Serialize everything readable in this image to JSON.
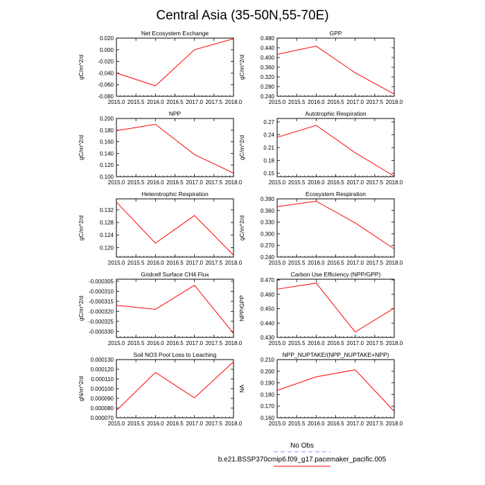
{
  "page_title": "Central Asia (35-50N,55-70E)",
  "legend": {
    "obs_label": "No Obs",
    "obs_color": "#8a8aff",
    "model_label": "b.e21.BSSP370cmip6.f09_g17.pacemaker_pacific.005",
    "model_color": "#ff0000"
  },
  "series_color": "#ff0000",
  "chart_data": [
    {
      "type": "line",
      "title": "Net Ecosystem Exchange",
      "ylabel": "gC/m^2/d",
      "x": [
        2015,
        2016,
        2017,
        2018
      ],
      "values": [
        -0.04,
        -0.062,
        0.0,
        0.019
      ],
      "xlim": [
        2015,
        2018
      ],
      "ylim": [
        -0.08,
        0.02
      ],
      "xticks": [
        "2015.0",
        "2015.5",
        "2016.0",
        "2016.5",
        "2017.0",
        "2017.5",
        "2018.0"
      ],
      "yticks": [
        "-0.080",
        "-0.060",
        "-0.040",
        "-0.020",
        "0.000",
        "0.020"
      ]
    },
    {
      "type": "line",
      "title": "GPP",
      "ylabel": "gC/m^2/d",
      "x": [
        2015,
        2016,
        2017,
        2018
      ],
      "values": [
        0.413,
        0.447,
        0.337,
        0.249
      ],
      "xlim": [
        2015,
        2018
      ],
      "ylim": [
        0.24,
        0.48
      ],
      "xticks": [
        "2015.0",
        "2015.5",
        "2016.0",
        "2016.5",
        "2017.0",
        "2017.5",
        "2018.0"
      ],
      "yticks": [
        "0.240",
        "0.280",
        "0.320",
        "0.360",
        "0.400",
        "0.440",
        "0.480"
      ]
    },
    {
      "type": "line",
      "title": "NPP",
      "ylabel": "gC/m^2/d",
      "x": [
        2015,
        2016,
        2017,
        2018
      ],
      "values": [
        0.179,
        0.19,
        0.138,
        0.106
      ],
      "xlim": [
        2015,
        2018
      ],
      "ylim": [
        0.1,
        0.2
      ],
      "xticks": [
        "2015.0",
        "2015.5",
        "2016.0",
        "2016.5",
        "2017.0",
        "2017.5",
        "2018.0"
      ],
      "yticks": [
        "0.100",
        "0.120",
        "0.140",
        "0.160",
        "0.180",
        "0.200"
      ]
    },
    {
      "type": "line",
      "title": "Autotrophic Respiration",
      "ylabel": "gC/m^2/d",
      "x": [
        2015,
        2016,
        2017,
        2018
      ],
      "values": [
        0.234,
        0.262,
        0.198,
        0.143
      ],
      "xlim": [
        2015,
        2018
      ],
      "ylim": [
        0.142,
        0.278
      ],
      "xticks": [
        "2015.0",
        "2015.5",
        "2016.0",
        "2016.5",
        "2017.0",
        "2017.5",
        "2018.0"
      ],
      "yticks": [
        "0.15",
        "0.18",
        "0.21",
        "0.24",
        "0.27"
      ],
      "ytick_values": [
        0.15,
        0.18,
        0.21,
        0.24,
        0.27
      ]
    },
    {
      "type": "line",
      "title": "Heterotrophic Respiration",
      "ylabel": "gC/m^2/d",
      "x": [
        2015,
        2016,
        2017,
        2018
      ],
      "values": [
        0.1345,
        0.1214,
        0.1302,
        0.1176
      ],
      "xlim": [
        2015,
        2018
      ],
      "ylim": [
        0.117,
        0.1355
      ],
      "xticks": [
        "2015.0",
        "2015.5",
        "2016.0",
        "2016.5",
        "2017.0",
        "2017.5",
        "2018.0"
      ],
      "yticks": [
        "0.120",
        "0.124",
        "0.128",
        "0.132"
      ],
      "ytick_values": [
        0.12,
        0.124,
        0.128,
        0.132
      ]
    },
    {
      "type": "line",
      "title": "Ecosystem Respiration",
      "ylabel": "gC/m^2/d",
      "x": [
        2015,
        2016,
        2017,
        2018
      ],
      "values": [
        0.37,
        0.384,
        0.328,
        0.261
      ],
      "xlim": [
        2015,
        2018
      ],
      "ylim": [
        0.24,
        0.39
      ],
      "xticks": [
        "2015.0",
        "2015.5",
        "2016.0",
        "2016.5",
        "2017.0",
        "2017.5",
        "2018.0"
      ],
      "yticks": [
        "0.240",
        "0.270",
        "0.300",
        "0.330",
        "0.360",
        "0.390"
      ]
    },
    {
      "type": "line",
      "title": "Gridcell Surface CH4 Flux",
      "ylabel": "gC/m^2/d",
      "x": [
        2015,
        2016,
        2017,
        2018
      ],
      "values": [
        -0.000317,
        -0.000319,
        -0.000307,
        -0.000331
      ],
      "xlim": [
        2015,
        2018
      ],
      "ylim": [
        -0.000333,
        -0.000304
      ],
      "xticks": [
        "2015.0",
        "2015.5",
        "2016.0",
        "2016.5",
        "2017.0",
        "2017.5",
        "2018.0"
      ],
      "yticks": [
        "-0.000330",
        "-0.000325",
        "-0.000320",
        "-0.000315",
        "-0.000310",
        "-0.000305"
      ],
      "ytick_values": [
        -0.00033,
        -0.000325,
        -0.00032,
        -0.000315,
        -0.00031,
        -0.000305
      ]
    },
    {
      "type": "line",
      "title": "Carbon Use Efficiency (NPP/GPP)",
      "ylabel": "NPP/GPP",
      "x": [
        2015,
        2016,
        2017,
        2018
      ],
      "values": [
        0.4636,
        0.4678,
        0.4338,
        0.4504
      ],
      "xlim": [
        2015,
        2018
      ],
      "ylim": [
        0.43,
        0.4705
      ],
      "xticks": [
        "2015.0",
        "2015.5",
        "2016.0",
        "2016.5",
        "2017.0",
        "2017.5",
        "2018.0"
      ],
      "yticks": [
        "0.430",
        "0.440",
        "0.450",
        "0.460",
        "0.470"
      ],
      "ytick_values": [
        0.43,
        0.44,
        0.45,
        0.46,
        0.47
      ]
    },
    {
      "type": "line",
      "title": "Soil NO3 Pool Loss to Leaching",
      "ylabel": "gN/m^2/d",
      "x": [
        2015,
        2016,
        2017,
        2018
      ],
      "values": [
        7.75e-05,
        0.0001168,
        9.05e-05,
        0.0001278
      ],
      "xlim": [
        2015,
        2018
      ],
      "ylim": [
        7e-05,
        0.00013
      ],
      "xticks": [
        "2015.0",
        "2015.5",
        "2016.0",
        "2016.5",
        "2017.0",
        "2017.5",
        "2018.0"
      ],
      "yticks": [
        "0.000070",
        "0.000080",
        "0.000090",
        "0.000100",
        "0.000110",
        "0.000120",
        "0.000130"
      ]
    },
    {
      "type": "line",
      "title": "NPP_NUPTAKE/(NPP_NUPTAKE+NPP)",
      "ylabel": "NA",
      "x": [
        2015,
        2016,
        2017,
        2018
      ],
      "values": [
        0.1835,
        0.1952,
        0.2012,
        0.1655
      ],
      "xlim": [
        2015,
        2018
      ],
      "ylim": [
        0.16,
        0.21
      ],
      "xticks": [
        "2015.0",
        "2015.5",
        "2016.0",
        "2016.5",
        "2017.0",
        "2017.5",
        "2018.0"
      ],
      "yticks": [
        "0.160",
        "0.170",
        "0.180",
        "0.190",
        "0.200",
        "0.210"
      ]
    }
  ]
}
